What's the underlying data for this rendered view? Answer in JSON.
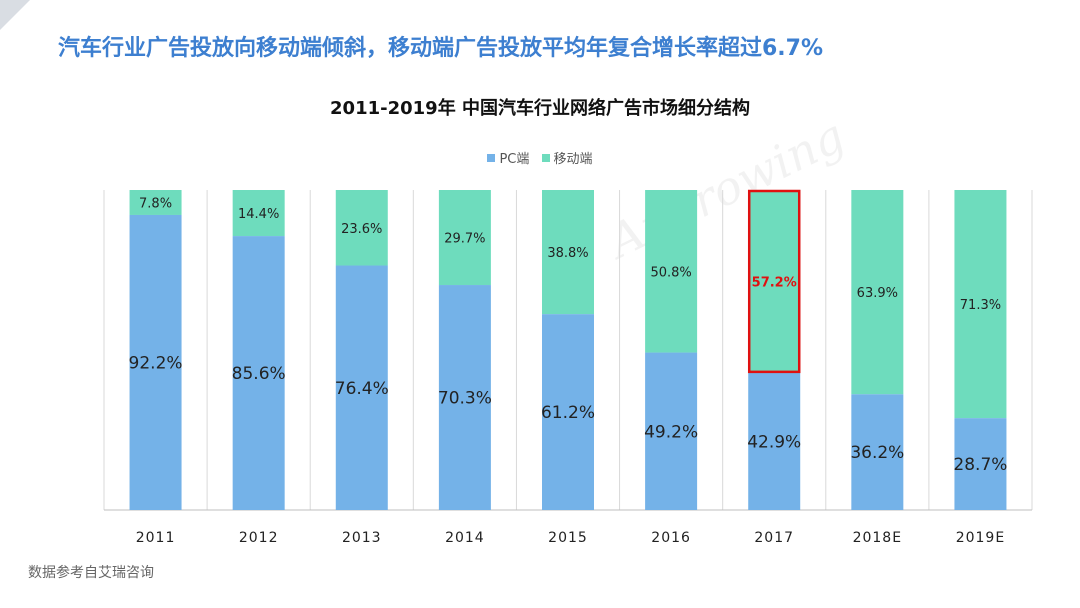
{
  "headline": "汽车行业广告投放向移动端倾斜，移动端广告投放平均年复合增长率超过6.7%",
  "source": "数据参考自艾瑞咨询",
  "watermark": "Approwing",
  "colors": {
    "pc": "#74b2e8",
    "mobile": "#6edcbd",
    "headline": "#3d7fd0",
    "highlight": "#e01010"
  },
  "chart_data": {
    "type": "bar",
    "stacked": true,
    "percent": true,
    "title": "2011-2019年 中国汽车行业网络广告市场细分结构",
    "categories": [
      "2011",
      "2012",
      "2013",
      "2014",
      "2015",
      "2016",
      "2017",
      "2018E",
      "2019E"
    ],
    "series": [
      {
        "name": "PC端",
        "values": [
          92.2,
          85.6,
          76.4,
          70.3,
          61.2,
          49.2,
          42.9,
          36.2,
          28.7
        ]
      },
      {
        "name": "移动端",
        "values": [
          7.8,
          14.4,
          23.6,
          29.7,
          38.8,
          50.8,
          57.2,
          63.9,
          71.3
        ]
      }
    ],
    "data_labels": {
      "PC端": [
        "92.2%",
        "85.6%",
        "76.4%",
        "70.3%",
        "61.2%",
        "49.2%",
        "42.9%",
        "36.2%",
        "28.7%"
      ],
      "移动端": [
        "7.8%",
        "14.4%",
        "23.6%",
        "29.7%",
        "38.8%",
        "50.8%",
        "57.2%",
        "63.9%",
        "71.3%"
      ]
    },
    "highlight_category": "2017",
    "legend_position": "top",
    "ylim": [
      0,
      100
    ],
    "grid": false
  }
}
